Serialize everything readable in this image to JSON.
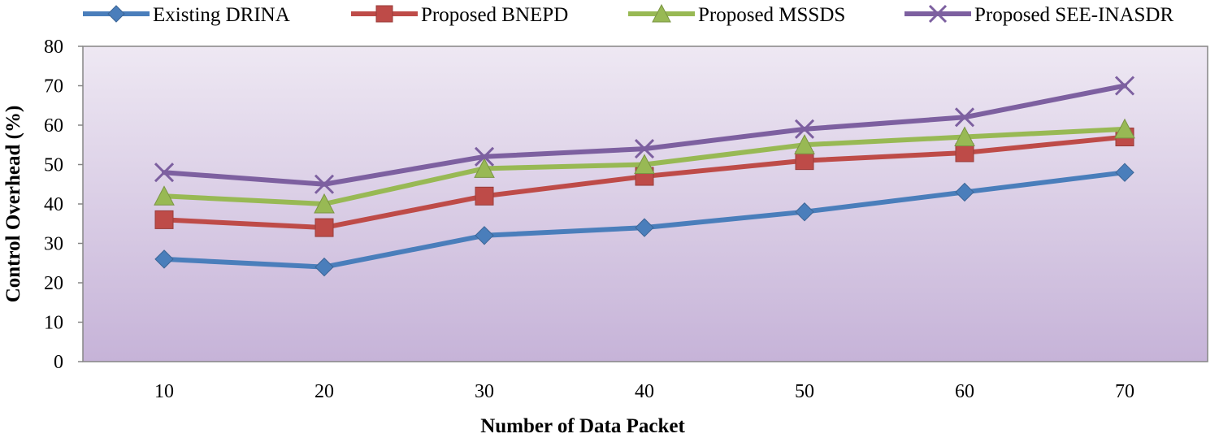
{
  "chart_data": {
    "type": "line",
    "title": "",
    "xlabel": "Number of Data Packet",
    "ylabel": "Control Overhead (%)",
    "categories": [
      "10",
      "20",
      "30",
      "40",
      "50",
      "60",
      "70"
    ],
    "ylim": [
      0,
      80
    ],
    "yticks": [
      "0",
      "10",
      "20",
      "30",
      "40",
      "50",
      "60",
      "70",
      "80"
    ],
    "legend_position": "top",
    "series": [
      {
        "name": "Existing DRINA",
        "color": "#4A7EBB",
        "marker": "diamond",
        "values": [
          26,
          24,
          32,
          34,
          38,
          43,
          48
        ]
      },
      {
        "name": "Proposed BNEPD",
        "color": "#BE4B48",
        "marker": "square",
        "values": [
          36,
          34,
          42,
          47,
          51,
          53,
          57
        ]
      },
      {
        "name": "Proposed MSSDS",
        "color": "#98B954",
        "marker": "triangle",
        "values": [
          42,
          40,
          49,
          50,
          55,
          57,
          59
        ]
      },
      {
        "name": "Proposed SEE-INASDR",
        "color": "#7D60A0",
        "marker": "x",
        "values": [
          48,
          45,
          52,
          54,
          59,
          62,
          70
        ]
      }
    ]
  }
}
